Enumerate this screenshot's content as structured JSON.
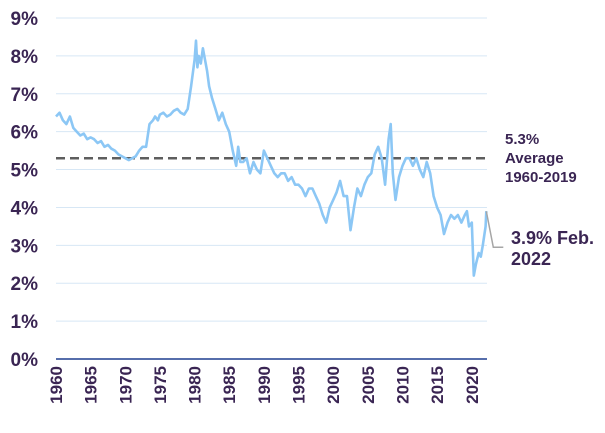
{
  "chart_data": {
    "type": "line",
    "title": "",
    "xlabel": "",
    "ylabel": "",
    "ylim": [
      0,
      9
    ],
    "xlim": [
      1960,
      2022.2
    ],
    "y_tick_labels": [
      "0%",
      "1%",
      "2%",
      "3%",
      "4%",
      "5%",
      "6%",
      "7%",
      "8%",
      "9%"
    ],
    "y_tick_values": [
      0,
      1,
      2,
      3,
      4,
      5,
      6,
      7,
      8,
      9
    ],
    "x_tick_labels": [
      "1960",
      "1965",
      "1970",
      "1975",
      "1980",
      "1985",
      "1990",
      "1995",
      "2000",
      "2005",
      "2010",
      "2015",
      "2020"
    ],
    "x_tick_values": [
      1960,
      1965,
      1970,
      1975,
      1980,
      1985,
      1990,
      1995,
      2000,
      2005,
      2010,
      2015,
      2020
    ],
    "grid": "horizontal",
    "colors": {
      "series": "#8cc7f5",
      "average": "#5e5e5e",
      "text": "#3a2553",
      "baseline": "#1f3f8f",
      "grid": "#d7e7f5",
      "callout": "#a6a6a6"
    },
    "series": [
      {
        "x": [
          1960.0,
          1960.5,
          1961.0,
          1961.5,
          1962.0,
          1962.5,
          1963.0,
          1963.5,
          1964.0,
          1964.5,
          1965.0,
          1965.5,
          1966.0,
          1966.5,
          1967.0,
          1967.5,
          1968.0,
          1968.5,
          1969.0,
          1969.5,
          1970.0,
          1970.5,
          1971.0,
          1971.5,
          1972.0,
          1972.5,
          1973.0,
          1973.5,
          1974.0,
          1974.3,
          1974.7,
          1975.0,
          1975.5,
          1976.0,
          1976.5,
          1977.0,
          1977.5,
          1978.0,
          1978.5,
          1979.0,
          1979.5,
          1980.0,
          1980.2,
          1980.4,
          1980.6,
          1980.9,
          1981.2,
          1981.5,
          1981.8,
          1982.1,
          1982.5,
          1983.0,
          1983.5,
          1984.0,
          1984.5,
          1985.0,
          1985.5,
          1986.0,
          1986.3,
          1986.6,
          1987.0,
          1987.5,
          1988.0,
          1988.5,
          1989.0,
          1989.5,
          1990.0,
          1990.5,
          1991.0,
          1991.5,
          1992.0,
          1992.5,
          1993.0,
          1993.5,
          1994.0,
          1994.5,
          1995.0,
          1995.5,
          1996.0,
          1996.5,
          1997.0,
          1997.5,
          1998.0,
          1998.5,
          1999.0,
          1999.5,
          2000.0,
          2000.5,
          2001.0,
          2001.5,
          2002.0,
          2002.5,
          2003.0,
          2003.5,
          2004.0,
          2004.5,
          2005.0,
          2005.5,
          2006.0,
          2006.5,
          2007.0,
          2007.5,
          2008.0,
          2008.3,
          2008.6,
          2009.0,
          2009.5,
          2010.0,
          2010.5,
          2011.0,
          2011.5,
          2012.0,
          2012.5,
          2013.0,
          2013.5,
          2014.0,
          2014.5,
          2015.0,
          2015.5,
          2016.0,
          2016.5,
          2017.0,
          2017.5,
          2018.0,
          2018.5,
          2019.0,
          2019.3,
          2019.6,
          2020.0,
          2020.3,
          2020.6,
          2021.0,
          2021.3,
          2021.6,
          2022.0,
          2022.1
        ],
        "values": [
          6.4,
          6.5,
          6.3,
          6.2,
          6.4,
          6.1,
          6.0,
          5.9,
          5.95,
          5.8,
          5.85,
          5.8,
          5.7,
          5.75,
          5.6,
          5.65,
          5.55,
          5.5,
          5.4,
          5.35,
          5.3,
          5.25,
          5.3,
          5.35,
          5.5,
          5.6,
          5.6,
          6.2,
          6.3,
          6.4,
          6.3,
          6.45,
          6.5,
          6.4,
          6.45,
          6.55,
          6.6,
          6.5,
          6.45,
          6.6,
          7.2,
          7.9,
          8.4,
          7.7,
          8.0,
          7.8,
          8.2,
          7.9,
          7.6,
          7.2,
          6.9,
          6.6,
          6.3,
          6.5,
          6.2,
          6.0,
          5.5,
          5.1,
          5.6,
          5.2,
          5.2,
          5.3,
          4.9,
          5.2,
          5.0,
          4.9,
          5.5,
          5.3,
          5.1,
          4.9,
          4.8,
          4.9,
          4.9,
          4.7,
          4.8,
          4.6,
          4.6,
          4.5,
          4.3,
          4.5,
          4.5,
          4.3,
          4.1,
          3.8,
          3.6,
          4.0,
          4.2,
          4.4,
          4.7,
          4.3,
          4.3,
          3.4,
          4.0,
          4.5,
          4.3,
          4.6,
          4.8,
          4.9,
          5.4,
          5.6,
          5.3,
          4.6,
          5.8,
          6.2,
          4.9,
          4.2,
          4.8,
          5.1,
          5.3,
          5.3,
          5.1,
          5.3,
          5.0,
          4.8,
          5.2,
          4.9,
          4.3,
          4.0,
          3.8,
          3.3,
          3.6,
          3.8,
          3.7,
          3.8,
          3.6,
          3.8,
          3.9,
          3.5,
          3.6,
          2.2,
          2.5,
          2.8,
          2.7,
          3.0,
          3.5,
          3.9
        ]
      }
    ],
    "average": {
      "value": 5.3,
      "value_label": "5.3%",
      "label_line2": "Average",
      "label_line3": "1960-2019"
    },
    "callout": {
      "x": 2022.1,
      "y": 3.9,
      "label_line1": "3.9% Feb.",
      "label_line2": "2022"
    }
  }
}
